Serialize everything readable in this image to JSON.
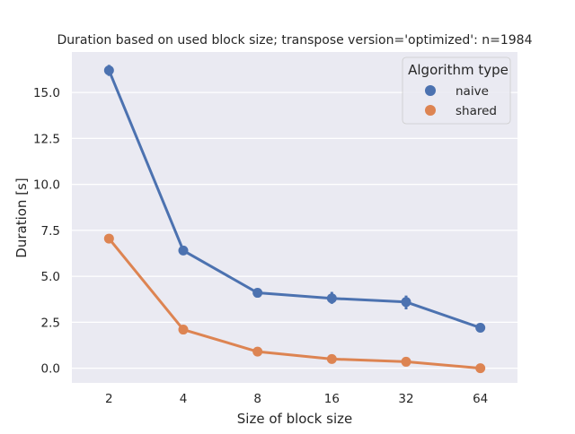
{
  "chart_data": {
    "type": "line",
    "title": "Duration based on used block size; transpose version='optimized': n=1984",
    "xlabel": "Size of block size",
    "ylabel": "Duration [s]",
    "categories": [
      "2",
      "4",
      "8",
      "16",
      "32",
      "64"
    ],
    "ylim": [
      -0.8,
      17.2
    ],
    "yticks": [
      0.0,
      2.5,
      5.0,
      7.5,
      10.0,
      12.5,
      15.0
    ],
    "ytick_labels": [
      "0.0",
      "2.5",
      "5.0",
      "7.5",
      "10.0",
      "12.5",
      "15.0"
    ],
    "grid": true,
    "legend": {
      "title": "Algorithm type",
      "placement": "top-right"
    },
    "series": [
      {
        "name": "naive",
        "color": "#4c72b0",
        "values": [
          16.2,
          6.4,
          4.1,
          3.8,
          3.6,
          2.2
        ],
        "error_low": [
          15.9,
          6.3,
          4.0,
          3.5,
          3.2,
          2.15
        ],
        "error_high": [
          16.5,
          6.5,
          4.2,
          4.15,
          3.95,
          2.3
        ]
      },
      {
        "name": "shared",
        "color": "#dd8452",
        "values": [
          7.05,
          2.1,
          0.9,
          0.5,
          0.35,
          0.0
        ],
        "error_low": [
          6.95,
          2.05,
          0.85,
          0.45,
          0.3,
          -0.03
        ],
        "error_high": [
          7.15,
          2.15,
          0.95,
          0.55,
          0.4,
          0.03
        ]
      }
    ]
  }
}
